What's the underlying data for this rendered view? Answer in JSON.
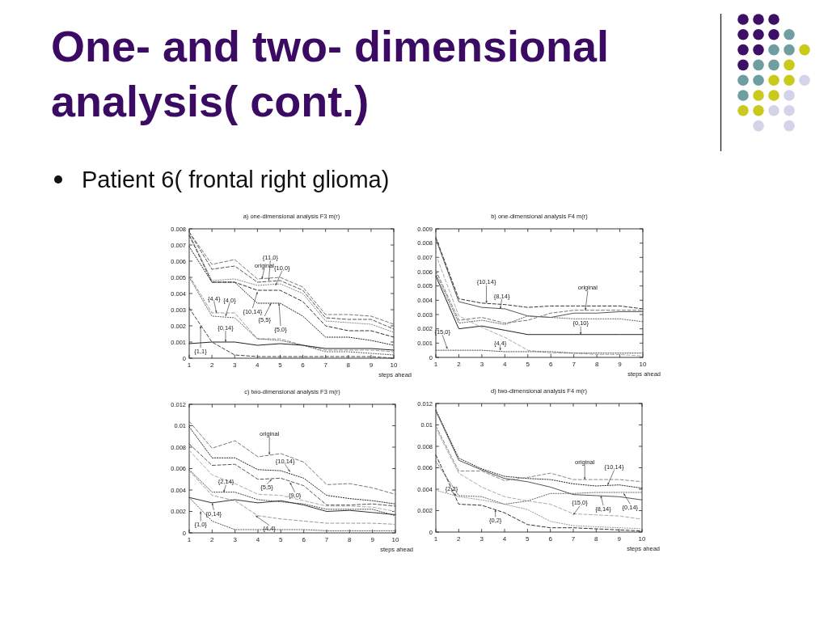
{
  "chart_data": [
    {
      "type": "other",
      "title": "One- and two- dimensional analysis( cont.)",
      "annotations": [
        "Patient 6( frontal right glioma)"
      ]
    },
    {
      "type": "line",
      "title": "a) one-dimensional analysis F3 m(r)",
      "xlabel": "steps ahead",
      "x": [
        1,
        2,
        3,
        4,
        5,
        6,
        7,
        8,
        9,
        10
      ],
      "xlim": [
        1,
        10
      ],
      "xticks": [
        1,
        2,
        3,
        4,
        5,
        6,
        7,
        8,
        9,
        10
      ],
      "ylim": [
        0,
        0.008
      ],
      "yticks": [
        0,
        0.001,
        0.002,
        0.003,
        0.004,
        0.005,
        0.006,
        0.007,
        0.008
      ],
      "series": [
        {
          "color": "#777777",
          "line_style": "dashed",
          "values": [
            0.0078,
            0.0058,
            0.0061,
            0.0049,
            0.005,
            0.0044,
            0.0027,
            0.0027,
            0.0026,
            0.0021
          ]
        },
        {
          "color": "#555555",
          "line_style": "dashed",
          "values": [
            0.0078,
            0.0055,
            0.0057,
            0.0047,
            0.0048,
            0.0042,
            0.0025,
            0.0024,
            0.0024,
            0.0018
          ]
        },
        {
          "color": "#888888",
          "line_style": "dotted",
          "values": [
            0.0077,
            0.0048,
            0.0049,
            0.0045,
            0.0046,
            0.004,
            0.0023,
            0.0022,
            0.0021,
            0.0016
          ]
        },
        {
          "color": "#333333",
          "line_style": "dashed",
          "values": [
            0.0076,
            0.0047,
            0.0047,
            0.0042,
            0.0042,
            0.0035,
            0.002,
            0.0017,
            0.0017,
            0.0013
          ]
        },
        {
          "color": "#222222",
          "line_style": "dotted",
          "values": [
            0.0069,
            0.0047,
            0.0047,
            0.0034,
            0.0034,
            0.0026,
            0.0013,
            0.0013,
            0.0011,
            0.0008
          ]
        },
        {
          "color": "#999999",
          "line_style": "dashed",
          "values": [
            0.0051,
            0.0028,
            0.0028,
            0.0012,
            0.0012,
            0.0008,
            0.0005,
            0.0005,
            0.0005,
            0.0004
          ]
        },
        {
          "color": "#666666",
          "line_style": "dotted",
          "values": [
            0.005,
            0.0026,
            0.0025,
            0.0012,
            0.0011,
            0.0008,
            0.0004,
            0.0004,
            0.0003,
            0.0002
          ]
        },
        {
          "color": "#444444",
          "line_style": "dashed",
          "values": [
            0.0031,
            0.001,
            0.0002,
            0.0001,
            0.0001,
            0.0001,
            0.0001,
            0.0001,
            0.0001,
            0.0
          ]
        },
        {
          "color": "#222222",
          "line_style": "solid",
          "values": [
            0.0009,
            0.001,
            0.001,
            0.0008,
            0.0009,
            0.0008,
            0.0006,
            0.0006,
            0.0006,
            0.0005
          ]
        }
      ],
      "annotations": [
        {
          "text": "original",
          "x": 4.2,
          "y": 0.0049
        },
        {
          "text": "{11,0}",
          "x": 4.5,
          "y": 0.0048
        },
        {
          "text": "{10,0}",
          "x": 4.8,
          "y": 0.0045
        },
        {
          "text": "{4,4}",
          "x": 2.2,
          "y": 0.0028
        },
        {
          "text": "{4,0}",
          "x": 2.6,
          "y": 0.0026
        },
        {
          "text": "{10,14}",
          "x": 4.0,
          "y": 0.0041
        },
        {
          "text": "{5,5}",
          "x": 4.6,
          "y": 0.0034
        },
        {
          "text": "{5,0}",
          "x": 4.95,
          "y": 0.0034
        },
        {
          "text": "{0,14}",
          "x": 2.6,
          "y": 0.001
        },
        {
          "text": "{1,1}",
          "x": 1.5,
          "y": 0.002
        }
      ]
    },
    {
      "type": "line",
      "title": "b) one-dimensional analysis F4 m(r)",
      "xlabel": "steps ahead",
      "x": [
        1,
        2,
        3,
        4,
        5,
        6,
        7,
        8,
        9,
        10
      ],
      "xlim": [
        1,
        10
      ],
      "xticks": [
        1,
        2,
        3,
        4,
        5,
        6,
        7,
        8,
        9,
        10
      ],
      "ylim": [
        0,
        0.009
      ],
      "yticks": [
        0,
        0.001,
        0.002,
        0.003,
        0.004,
        0.005,
        0.006,
        0.007,
        0.008,
        0.009
      ],
      "series": [
        {
          "color": "#333333",
          "line_style": "dashed",
          "values": [
            0.0084,
            0.0041,
            0.0038,
            0.0037,
            0.0035,
            0.0036,
            0.0036,
            0.0036,
            0.0036,
            0.0034
          ]
        },
        {
          "color": "#555555",
          "line_style": "solid",
          "values": [
            0.0083,
            0.0039,
            0.0035,
            0.0034,
            0.0029,
            0.0028,
            0.0031,
            0.0031,
            0.0032,
            0.0032
          ]
        },
        {
          "color": "#777777",
          "line_style": "dashed",
          "values": [
            0.0061,
            0.0026,
            0.0028,
            0.0024,
            0.0026,
            0.0031,
            0.0033,
            0.0033,
            0.0033,
            0.0033
          ]
        },
        {
          "color": "#666666",
          "line_style": "dotted",
          "values": [
            0.0059,
            0.0024,
            0.0026,
            0.0023,
            0.0029,
            0.0028,
            0.0027,
            0.0027,
            0.0027,
            0.0025
          ]
        },
        {
          "color": "#222222",
          "line_style": "solid",
          "values": [
            0.0057,
            0.002,
            0.0022,
            0.0019,
            0.0016,
            0.0016,
            0.0016,
            0.0016,
            0.0016,
            0.0016
          ]
        },
        {
          "color": "#aaaaaa",
          "line_style": "dashed",
          "values": [
            0.0072,
            0.0029,
            0.0021,
            0.0014,
            0.0005,
            0.0003,
            0.0003,
            0.0002,
            0.0002,
            0.0001
          ]
        },
        {
          "color": "#444444",
          "line_style": "dotted",
          "values": [
            0.0005,
            0.0005,
            0.0005,
            0.0004,
            0.0004,
            0.0004,
            0.0003,
            0.0003,
            0.0003,
            0.0003
          ]
        }
      ],
      "annotations": [
        {
          "text": "{10,14}",
          "x": 3.2,
          "y": 0.0038
        },
        {
          "text": "{8,14}",
          "x": 3.8,
          "y": 0.0034
        },
        {
          "text": "original",
          "x": 7.5,
          "y": 0.0033
        },
        {
          "text": "{0,10}",
          "x": 7.3,
          "y": 0.0016
        },
        {
          "text": "{15,0}",
          "x": 1.5,
          "y": 0.0006
        },
        {
          "text": "{4,4}",
          "x": 3.8,
          "y": 0.0005
        }
      ]
    },
    {
      "type": "line",
      "title": "c) two-dimensional analysis F3 m(r)",
      "xlabel": "steps ahead",
      "x": [
        1,
        2,
        3,
        4,
        5,
        6,
        7,
        8,
        9,
        10
      ],
      "xlim": [
        1,
        10
      ],
      "xticks": [
        1,
        2,
        3,
        4,
        5,
        6,
        7,
        8,
        9,
        10
      ],
      "ylim": [
        0,
        0.012
      ],
      "yticks": [
        0,
        0.002,
        0.004,
        0.006,
        0.008,
        0.01,
        0.012
      ],
      "series": [
        {
          "color": "#777777",
          "line_style": "dashed",
          "values": [
            0.0104,
            0.0079,
            0.0086,
            0.0071,
            0.0074,
            0.0066,
            0.0045,
            0.0046,
            0.0042,
            0.0036
          ]
        },
        {
          "color": "#222222",
          "line_style": "dotted",
          "values": [
            0.0099,
            0.007,
            0.007,
            0.0059,
            0.0058,
            0.0051,
            0.0035,
            0.0032,
            0.003,
            0.0027
          ]
        },
        {
          "color": "#555555",
          "line_style": "dashed",
          "values": [
            0.0083,
            0.0063,
            0.0064,
            0.005,
            0.0051,
            0.0044,
            0.0026,
            0.0026,
            0.0027,
            0.0025
          ]
        },
        {
          "color": "#aaaaaa",
          "line_style": "dashed",
          "values": [
            0.0077,
            0.0054,
            0.0046,
            0.0036,
            0.0035,
            0.003,
            0.0025,
            0.0025,
            0.0024,
            0.002
          ]
        },
        {
          "color": "#444444",
          "line_style": "dotted",
          "values": [
            0.0059,
            0.0038,
            0.0038,
            0.0031,
            0.0029,
            0.0027,
            0.0022,
            0.0022,
            0.0022,
            0.0016
          ]
        },
        {
          "color": "#999999",
          "line_style": "dashed",
          "values": [
            0.0058,
            0.0035,
            0.003,
            0.0016,
            0.0013,
            0.0011,
            0.0009,
            0.0009,
            0.0009,
            0.0008
          ]
        },
        {
          "color": "#333333",
          "line_style": "solid",
          "values": [
            0.0033,
            0.0028,
            0.0031,
            0.0028,
            0.003,
            0.0026,
            0.002,
            0.0021,
            0.0019,
            0.0017
          ]
        },
        {
          "color": "#555555",
          "line_style": "dotted",
          "values": [
            0.0033,
            0.0011,
            0.0003,
            0.0003,
            0.0003,
            0.0003,
            0.0002,
            0.0002,
            0.0002,
            0.0002
          ]
        }
      ],
      "annotations": [
        {
          "text": "original",
          "x": 4.5,
          "y": 0.0073
        },
        {
          "text": "{10,14}",
          "x": 5.4,
          "y": 0.0057
        },
        {
          "text": "{2,14}",
          "x": 2.5,
          "y": 0.0038
        },
        {
          "text": "{5,5}",
          "x": 4.6,
          "y": 0.005
        },
        {
          "text": "{9,0}",
          "x": 5.4,
          "y": 0.0047
        },
        {
          "text": "{0,14}",
          "x": 2.0,
          "y": 0.0028
        },
        {
          "text": "{1,0}",
          "x": 1.5,
          "y": 0.002
        },
        {
          "text": "{4,4}",
          "x": 3.9,
          "y": 0.0016
        }
      ]
    },
    {
      "type": "line",
      "title": "d) two-dimensional analysis F4 m(r)",
      "xlabel": "steps ahead",
      "x": [
        1,
        2,
        3,
        4,
        5,
        6,
        7,
        8,
        9,
        10
      ],
      "xlim": [
        1,
        10
      ],
      "xticks": [
        1,
        2,
        3,
        4,
        5,
        6,
        7,
        8,
        9,
        10
      ],
      "ylim": [
        0,
        0.012
      ],
      "yticks": [
        0,
        0.002,
        0.004,
        0.006,
        0.008,
        0.01,
        0.012
      ],
      "series": [
        {
          "color": "#222222",
          "line_style": "dotted",
          "values": [
            0.0114,
            0.0069,
            0.0059,
            0.0052,
            0.005,
            0.0049,
            0.0045,
            0.0043,
            0.0044,
            0.0041
          ]
        },
        {
          "color": "#555555",
          "line_style": "solid",
          "values": [
            0.0113,
            0.0067,
            0.0058,
            0.005,
            0.0047,
            0.0042,
            0.0035,
            0.0034,
            0.0033,
            0.003
          ]
        },
        {
          "color": "#888888",
          "line_style": "dashed",
          "values": [
            0.0099,
            0.0057,
            0.0057,
            0.0048,
            0.0051,
            0.0055,
            0.0049,
            0.0049,
            0.0049,
            0.0047
          ]
        },
        {
          "color": "#aaaaaa",
          "line_style": "dashed",
          "values": [
            0.0097,
            0.0055,
            0.0042,
            0.0033,
            0.0029,
            0.0026,
            0.0017,
            0.0016,
            0.0015,
            0.0012
          ]
        },
        {
          "color": "#333333",
          "line_style": "dashed",
          "values": [
            0.0072,
            0.0026,
            0.0025,
            0.0018,
            0.0007,
            0.0004,
            0.0004,
            0.0003,
            0.0002,
            0.0001
          ]
        },
        {
          "color": "#666666",
          "line_style": "dotted",
          "values": [
            0.0066,
            0.0034,
            0.0033,
            0.0026,
            0.0029,
            0.0036,
            0.0036,
            0.0037,
            0.0037,
            0.0037
          ]
        },
        {
          "color": "#999999",
          "line_style": "dotted",
          "values": [
            0.0039,
            0.0033,
            0.003,
            0.0026,
            0.0021,
            0.001,
            0.0006,
            0.0005,
            0.0004,
            0.0003
          ]
        }
      ],
      "annotations": [
        {
          "text": "original",
          "x": 7.5,
          "y": 0.0049
        },
        {
          "text": "{10,14}",
          "x": 8.5,
          "y": 0.0044
        },
        {
          "text": "{2,2}",
          "x": 1.9,
          "y": 0.0034
        },
        {
          "text": "{15,0}",
          "x": 7.0,
          "y": 0.0016
        },
        {
          "text": "{8,14}",
          "x": 8.2,
          "y": 0.0034
        },
        {
          "text": "{0,14}",
          "x": 9.2,
          "y": 0.0036
        },
        {
          "text": "{0,2}",
          "x": 3.6,
          "y": 0.0021
        }
      ]
    }
  ]
}
